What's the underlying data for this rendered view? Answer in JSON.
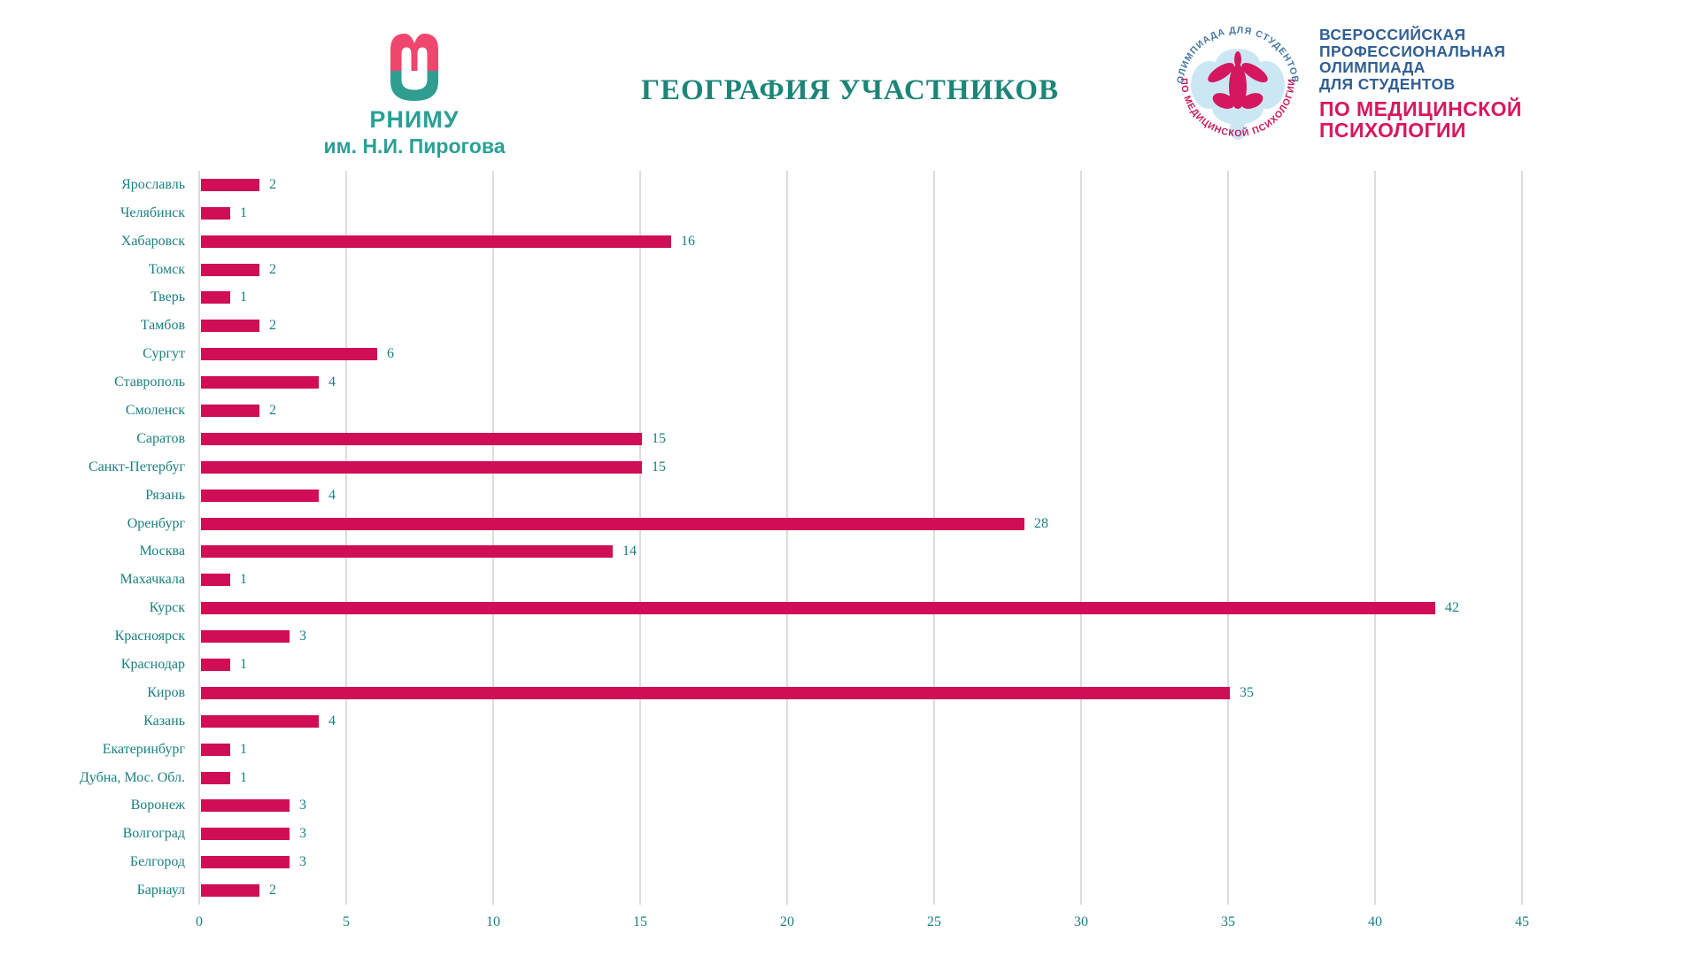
{
  "header": {
    "title": "ГЕОГРАФИЯ УЧАСТНИКОВ",
    "left_logo": {
      "name": "РНИМУ",
      "subtitle": "им. Н.И. Пирогова",
      "mark_pink": "#EF466E",
      "mark_teal": "#2F9E90"
    },
    "right_logo": {
      "arc_top": "ОЛИМПИАДА ДЛЯ СТУДЕНТОВ",
      "arc_bottom": "ПО МЕДИЦИНСКОЙ ПСИХОЛОГИИ",
      "lines_blue": [
        "ВСЕРОССИЙСКАЯ",
        "ПРОФЕССИОНАЛЬНАЯ",
        "ОЛИМПИАДА",
        "ДЛЯ СТУДЕНТОВ"
      ],
      "lines_red": [
        "ПО МЕДИЦИНСКОЙ",
        "ПСИХОЛОГИИ"
      ]
    }
  },
  "chart_data": {
    "type": "bar",
    "orientation": "horizontal",
    "title": "ГЕОГРАФИЯ УЧАСТНИКОВ",
    "categories": [
      "Ярославль",
      "Челябинск",
      "Хабаровск",
      "Томск",
      "Тверь",
      "Тамбов",
      "Сургут",
      "Ставрополь",
      "Смоленск",
      "Саратов",
      "Санкт-Петербуг",
      "Рязань",
      "Оренбург",
      "Москва",
      "Махачкала",
      "Курск",
      "Красноярск",
      "Краснодар",
      "Киров",
      "Казань",
      "Екатеринбург",
      "Дубна, Мос. Обл.",
      "Воронеж",
      "Волгоград",
      "Белгород",
      "Барнаул"
    ],
    "values": [
      2,
      1,
      16,
      2,
      1,
      2,
      6,
      4,
      2,
      15,
      15,
      4,
      28,
      14,
      1,
      42,
      3,
      1,
      35,
      4,
      1,
      1,
      3,
      3,
      3,
      2
    ],
    "xlabel": "",
    "ylabel": "",
    "xlim": [
      0,
      45
    ],
    "x_ticks": [
      0,
      5,
      10,
      15,
      20,
      25,
      30,
      35,
      40,
      45
    ],
    "grid": true,
    "legend": false,
    "data_labels": true,
    "bar_color": "#CF0E56",
    "label_color": "#1A7F80",
    "grid_color": "#DCDCDC"
  }
}
